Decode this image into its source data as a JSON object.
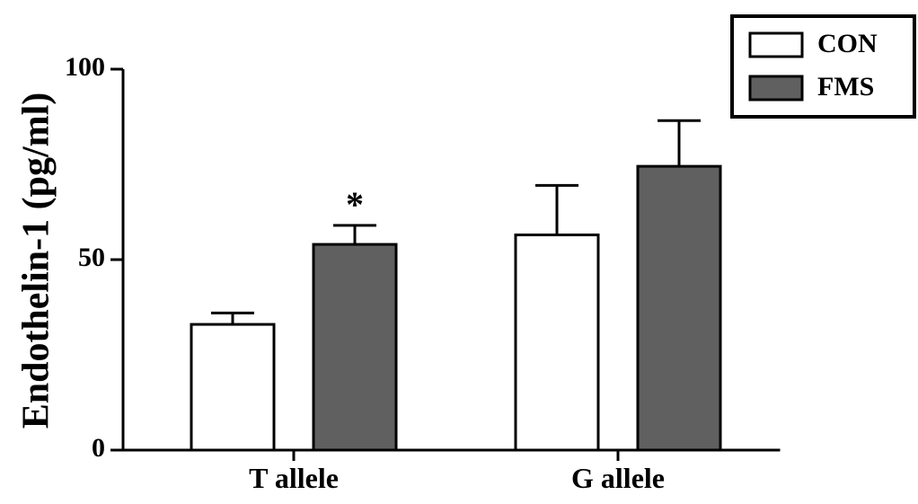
{
  "chart_data": {
    "type": "bar",
    "y_label": "Endothelin-1 (pg/ml)",
    "categories": [
      "T allele",
      "G allele"
    ],
    "series": [
      {
        "name": "CON",
        "color": "#ffffff",
        "values": [
          33,
          56.5
        ],
        "errors": [
          3,
          13
        ]
      },
      {
        "name": "FMS",
        "color": "#606060",
        "values": [
          54,
          74.5
        ],
        "errors": [
          5,
          12
        ]
      }
    ],
    "annotations": [
      {
        "text": "*",
        "series": 1,
        "index": 0
      }
    ],
    "ylim": [
      0,
      100
    ],
    "yticks": [
      0,
      50,
      100
    ],
    "legend": "upper right"
  }
}
